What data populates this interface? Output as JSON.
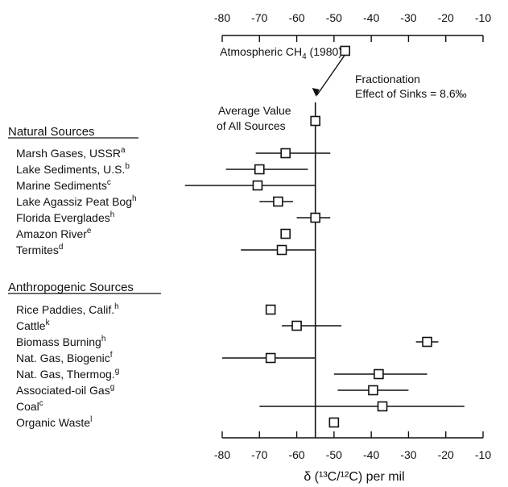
{
  "chart_data": {
    "type": "scatter",
    "xlabel": "δ (¹³C/¹²C) per mil",
    "xlim": [
      -80,
      -10
    ],
    "xticks": [
      -80,
      -70,
      -60,
      -50,
      -40,
      -30,
      -20,
      -10
    ],
    "reference_line": -55,
    "atmospheric": {
      "label": "Atmospheric CH",
      "sub": "4",
      "suffix": " (1980)",
      "x": -47
    },
    "average": {
      "label_line1": "Average Value",
      "label_line2": "of All Sources",
      "x": -55
    },
    "fractionation_note": {
      "line1": "Fractionation",
      "line2": "Effect of Sinks = 8.6‰"
    },
    "groups": [
      {
        "header": "Natural Sources",
        "items": [
          {
            "label": "Marsh Gases, USSR",
            "note": "a",
            "x": -63,
            "lo": -71,
            "hi": -51
          },
          {
            "label": "Lake Sediments, U.S.",
            "note": "b",
            "x": -70,
            "lo": -79,
            "hi": -57
          },
          {
            "label": "Marine Sediments",
            "note": "c",
            "x": -70.5,
            "lo": -90,
            "hi": -55
          },
          {
            "label": "Lake Agassiz Peat Bog",
            "note": "h",
            "x": -65,
            "lo": -70,
            "hi": -61
          },
          {
            "label": "Florida Everglades",
            "note": "h",
            "x": -55,
            "lo": -60,
            "hi": -51
          },
          {
            "label": "Amazon River",
            "note": "e",
            "x": -63,
            "lo": -63,
            "hi": -63
          },
          {
            "label": "Termites",
            "note": "d",
            "x": -64,
            "lo": -75,
            "hi": -55
          }
        ]
      },
      {
        "header": "Anthropogenic Sources",
        "items": [
          {
            "label": "Rice Paddies, Calif.",
            "note": "h",
            "x": -67,
            "lo": -67,
            "hi": -67
          },
          {
            "label": "Cattle",
            "note": "k",
            "x": -60,
            "lo": -64,
            "hi": -48
          },
          {
            "label": "Biomass Burning",
            "note": "h",
            "x": -25,
            "lo": -28,
            "hi": -22
          },
          {
            "label": "Nat. Gas, Biogenic",
            "note": "f",
            "x": -67,
            "lo": -80,
            "hi": -55
          },
          {
            "label": "Nat. Gas, Thermog.",
            "note": "g",
            "x": -38,
            "lo": -50,
            "hi": -25
          },
          {
            "label": "Associated-oil Gas",
            "note": "g",
            "x": -39.5,
            "lo": -49,
            "hi": -30
          },
          {
            "label": "Coal",
            "note": "c",
            "x": -37,
            "lo": -70,
            "hi": -15
          },
          {
            "label": "Organic Waste",
            "note": "l",
            "x": -50,
            "lo": -50,
            "hi": -50
          }
        ]
      }
    ]
  }
}
